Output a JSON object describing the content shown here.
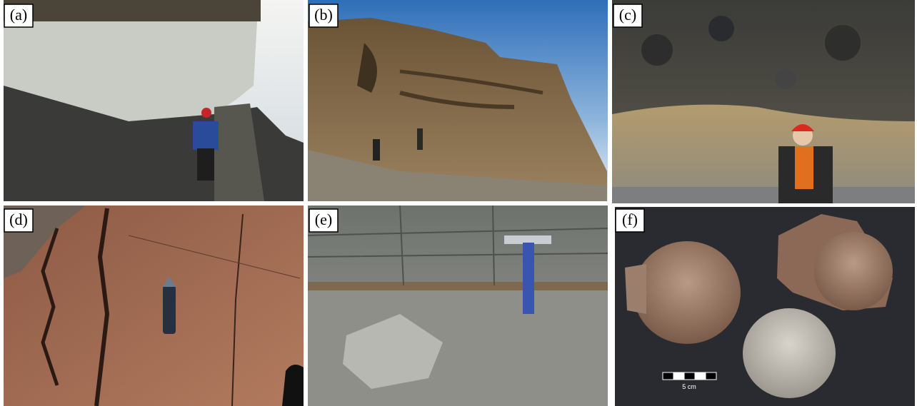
{
  "panels": [
    {
      "label": "(a)"
    },
    {
      "label": "(b)"
    },
    {
      "label": "(c)"
    },
    {
      "label": "(d)"
    },
    {
      "label": "(e)"
    },
    {
      "label": "(f)",
      "scale_bar": "5 cm"
    }
  ]
}
